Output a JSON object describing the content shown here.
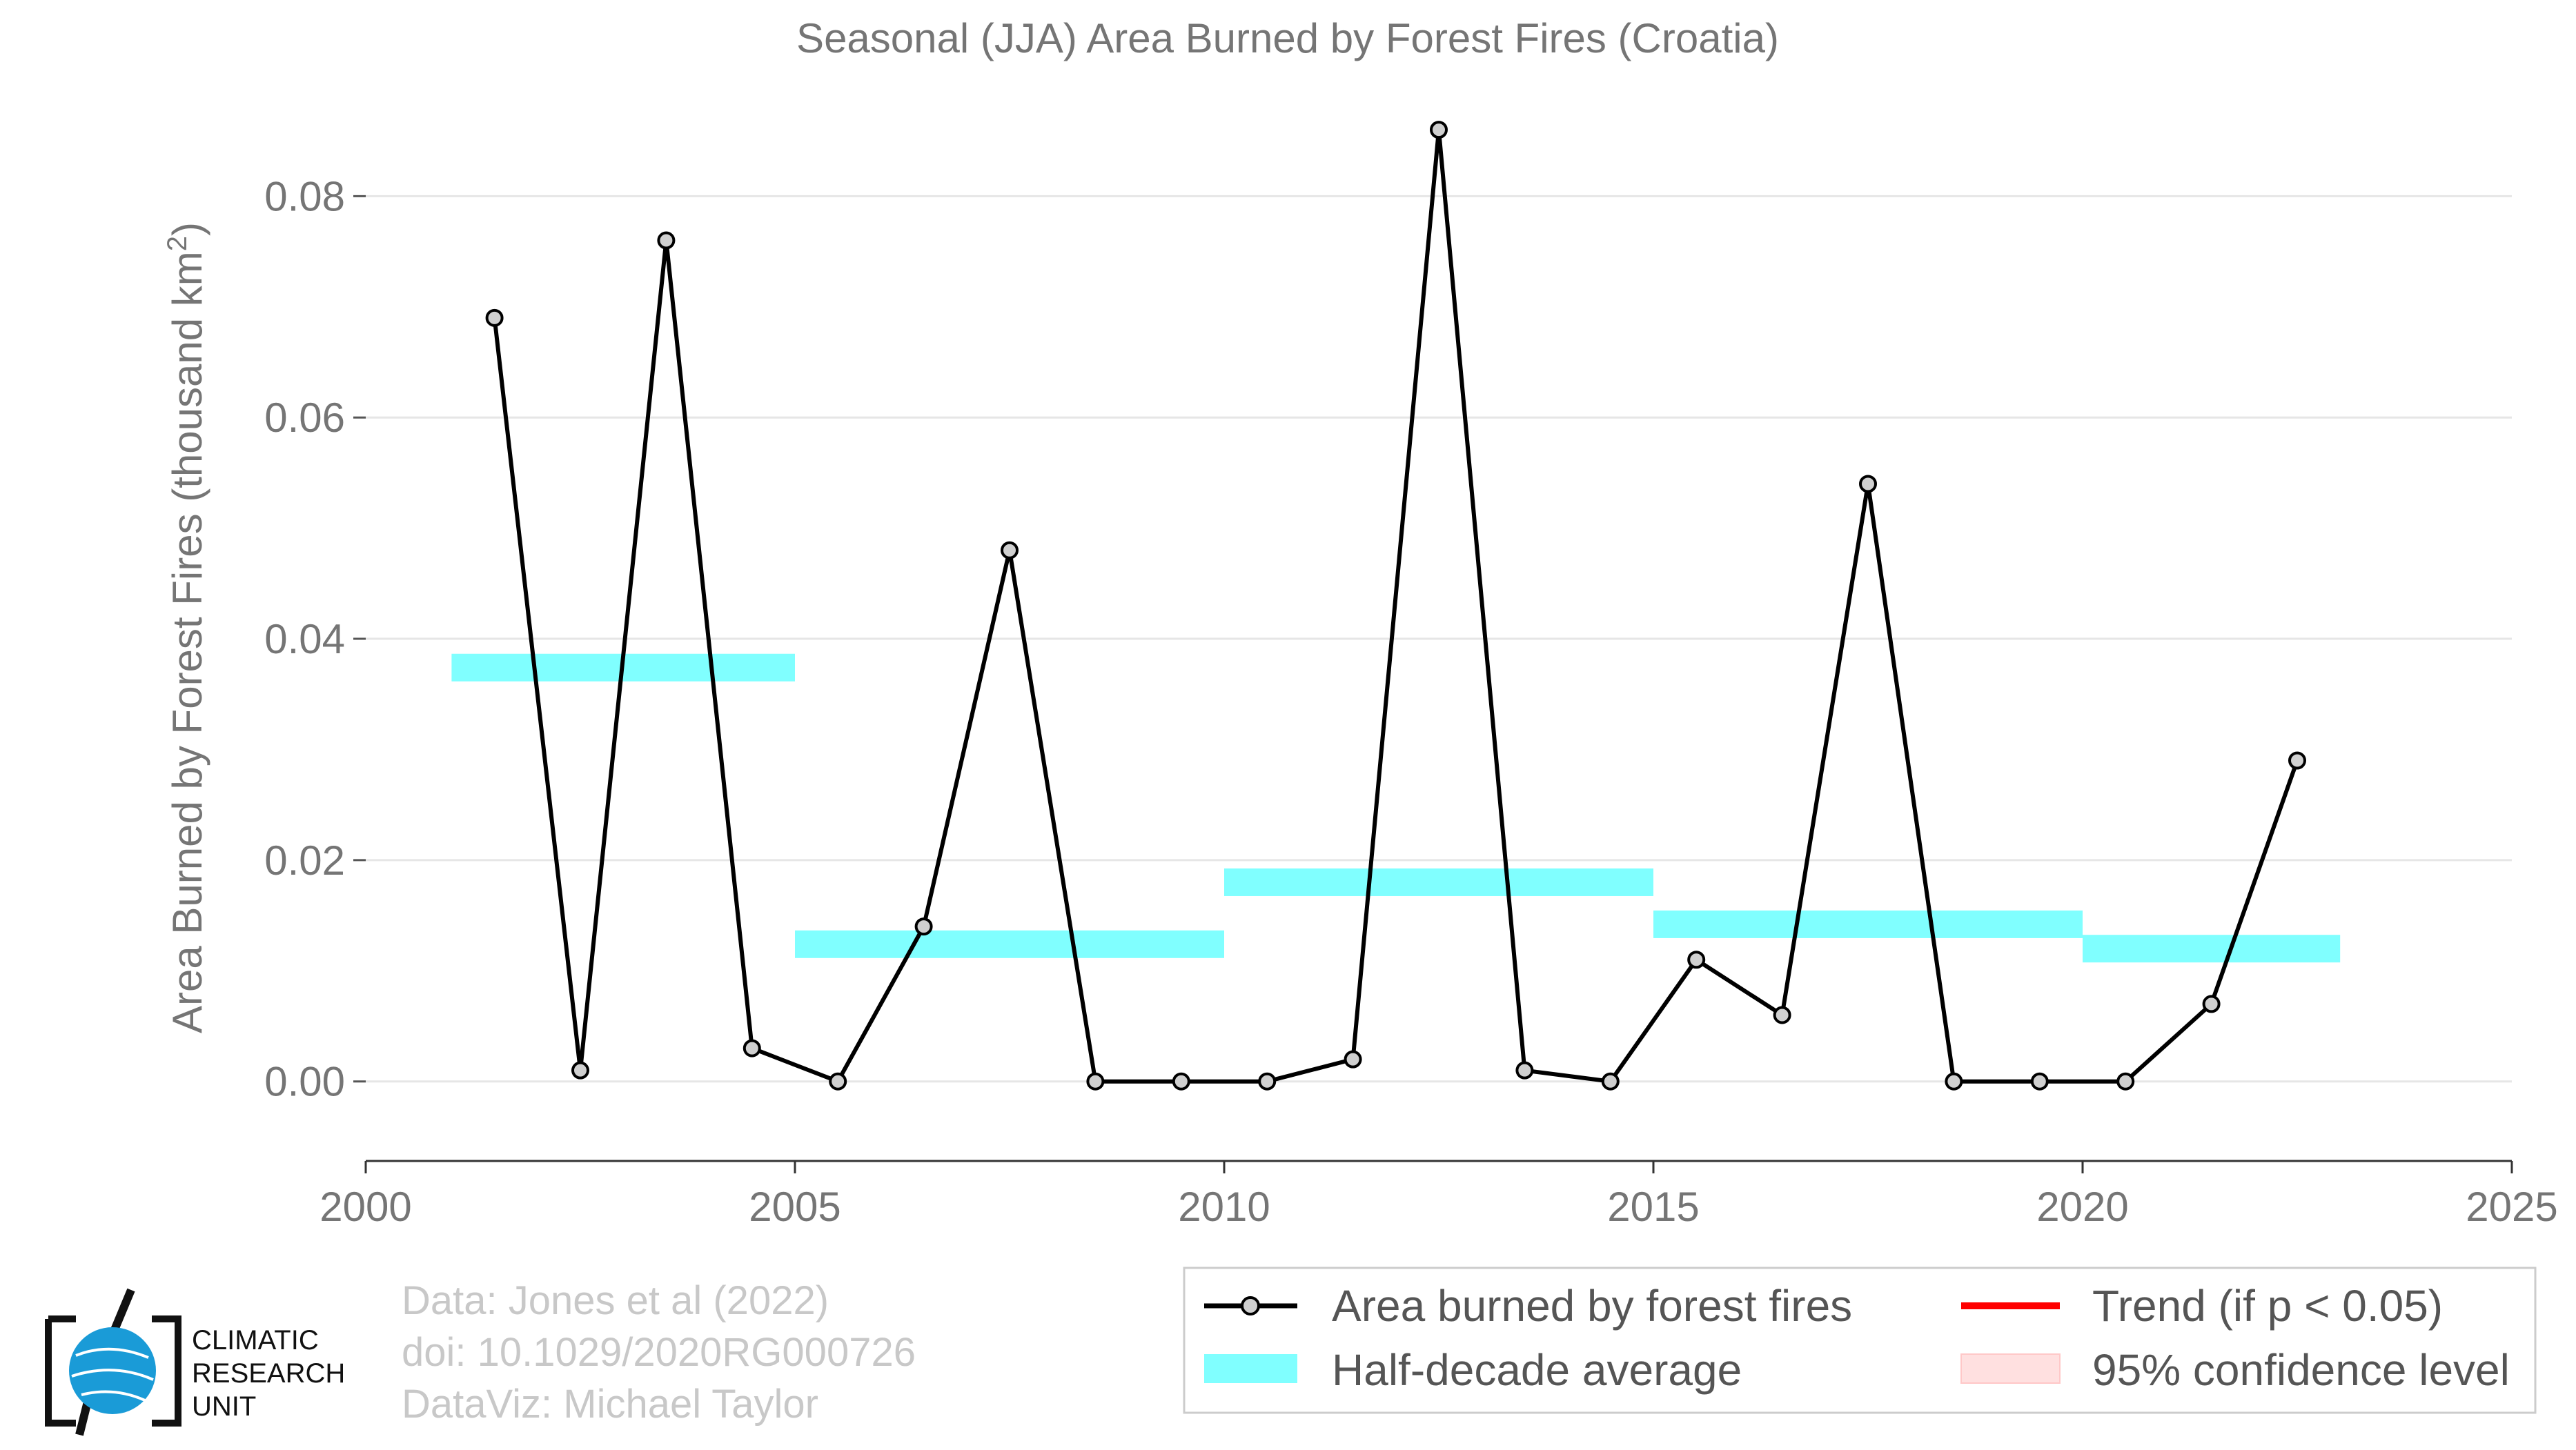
{
  "chart_data": {
    "type": "line",
    "title": "Seasonal (JJA) Area Burned by Forest Fires (Croatia)",
    "ylabel": "Area Burned by Forest Fires (thousand km",
    "ylabel_sup": "2",
    "ylabel_end": ")",
    "xlim": [
      2000,
      2025
    ],
    "ylim": [
      -0.007,
      0.089
    ],
    "x_ticks": [
      2000,
      2005,
      2010,
      2015,
      2020,
      2025
    ],
    "x_tick_labels": [
      "2000",
      "2005",
      "2010",
      "2015",
      "2020",
      "2025"
    ],
    "y_ticks": [
      0.0,
      0.02,
      0.04,
      0.06,
      0.08
    ],
    "y_tick_labels": [
      "0.00",
      "0.02",
      "0.04",
      "0.06",
      "0.08"
    ],
    "grid": true,
    "series": [
      {
        "name": "Area burned by forest fires",
        "color": "#000000",
        "x": [
          2001.5,
          2002.5,
          2003.5,
          2004.5,
          2005.5,
          2006.5,
          2007.5,
          2008.5,
          2009.5,
          2010.5,
          2011.5,
          2012.5,
          2013.5,
          2014.5,
          2015.5,
          2016.5,
          2017.5,
          2018.5,
          2019.5,
          2020.5,
          2021.5,
          2022.5
        ],
        "values": [
          0.069,
          0.001,
          0.076,
          0.003,
          0.0,
          0.014,
          0.048,
          0.0,
          0.0,
          0.0,
          0.002,
          0.086,
          0.001,
          0.0,
          0.011,
          0.006,
          0.054,
          0.0,
          0.0,
          0.0,
          0.007,
          0.029
        ]
      }
    ],
    "half_decade_average": {
      "name": "Half-decade average",
      "color": "#80ffff",
      "segments": [
        {
          "x0": 2001,
          "x1": 2005,
          "value": 0.0374
        },
        {
          "x0": 2005,
          "x1": 2010,
          "value": 0.0124
        },
        {
          "x0": 2010,
          "x1": 2015,
          "value": 0.018
        },
        {
          "x0": 2015,
          "x1": 2020,
          "value": 0.0142
        },
        {
          "x0": 2020,
          "x1": 2023,
          "value": 0.012
        }
      ]
    },
    "legend": {
      "placement": "bottom-right",
      "items": [
        {
          "label": "Area burned by forest fires",
          "kind": "line-marker",
          "color": "#000000"
        },
        {
          "label": "Trend (if p < 0.05)",
          "kind": "line",
          "color": "#ff0000"
        },
        {
          "label": "Half-decade average",
          "kind": "band",
          "color": "#80ffff"
        },
        {
          "label": "95% confidence level",
          "kind": "band",
          "color": "#ffe0e0"
        }
      ]
    }
  },
  "credits": {
    "line1": "Data: Jones et al (2022)",
    "line2": "doi: 10.1029/2020RG000726",
    "line3": "DataViz: Michael Taylor"
  },
  "logo": {
    "line1": "CLIMATIC",
    "line2": "RESEARCH",
    "line3": "UNIT"
  }
}
